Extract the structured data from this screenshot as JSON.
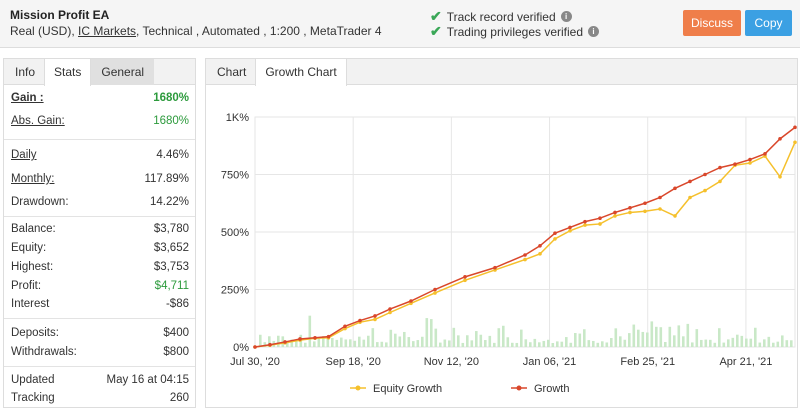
{
  "header": {
    "title": "Mission Profit EA",
    "meta_prefix": "Real (USD),",
    "broker": "IC Markets",
    "meta_suffix": ", Technical , Automated , 1:200 , MetaTrader 4",
    "verify1": "Track record verified",
    "verify2": "Trading privileges verified",
    "discuss_label": "Discuss",
    "copy_label": "Copy"
  },
  "left_tabs": [
    "Info",
    "Stats",
    "General"
  ],
  "stats": {
    "gain_label": "Gain :",
    "gain": "1680%",
    "abs_gain_label": "Abs. Gain:",
    "abs_gain": "1680%",
    "daily_label": "Daily",
    "daily": "4.46%",
    "monthly_label": "Monthly:",
    "monthly": "117.89%",
    "drawdown_label": "Drawdown:",
    "drawdown": "14.22%",
    "balance_label": "Balance:",
    "balance": "$3,780",
    "equity_label": "Equity:",
    "equity": "$3,652",
    "highest_label": "Highest:",
    "highest": "$3,753",
    "profit_label": "Profit:",
    "profit": "$4,711",
    "interest_label": "Interest",
    "interest": "-$86",
    "deposits_label": "Deposits:",
    "deposits": "$400",
    "withdrawals_label": "Withdrawals:",
    "withdrawals": "$800",
    "updated_label": "Updated",
    "updated": "May 16 at 04:15",
    "tracking_label": "Tracking",
    "tracking": "260"
  },
  "right_tabs": [
    "Chart",
    "Growth Chart"
  ],
  "colors": {
    "growth": "#d9472b",
    "equity": "#f5c02c",
    "bars": "#c9e8c7",
    "accent_green": "#2c9a3c"
  },
  "chart_data": {
    "type": "line",
    "y_tick_labels": [
      "0%",
      "250%",
      "500%",
      "750%",
      "1K%"
    ],
    "ylim": [
      0,
      1000
    ],
    "x_tick_labels": [
      "Jul 30, '20",
      "Sep 18, '20",
      "Nov 12, '20",
      "Jan 06, '21",
      "Feb 25, '21",
      "Apr 21, '21"
    ],
    "x": [
      0,
      10,
      20,
      30,
      40,
      49,
      60,
      70,
      80,
      90,
      104,
      120,
      140,
      160,
      180,
      190,
      200,
      210,
      220,
      230,
      240,
      250,
      260,
      270,
      280,
      290,
      300,
      310,
      320,
      330,
      340,
      350,
      360
    ],
    "series": [
      {
        "name": "Growth",
        "values": [
          0,
          10,
          22,
          35,
          40,
          45,
          90,
          115,
          135,
          165,
          200,
          250,
          305,
          345,
          400,
          440,
          495,
          520,
          545,
          560,
          585,
          605,
          625,
          650,
          690,
          720,
          750,
          780,
          795,
          815,
          840,
          905,
          955
        ]
      },
      {
        "name": "Equity Growth",
        "values": [
          0,
          8,
          18,
          30,
          38,
          40,
          80,
          108,
          120,
          150,
          190,
          235,
          290,
          335,
          380,
          405,
          470,
          505,
          530,
          535,
          570,
          585,
          590,
          600,
          570,
          650,
          680,
          720,
          790,
          800,
          830,
          740,
          890
        ]
      }
    ],
    "grid": true,
    "legend": "bottom"
  }
}
